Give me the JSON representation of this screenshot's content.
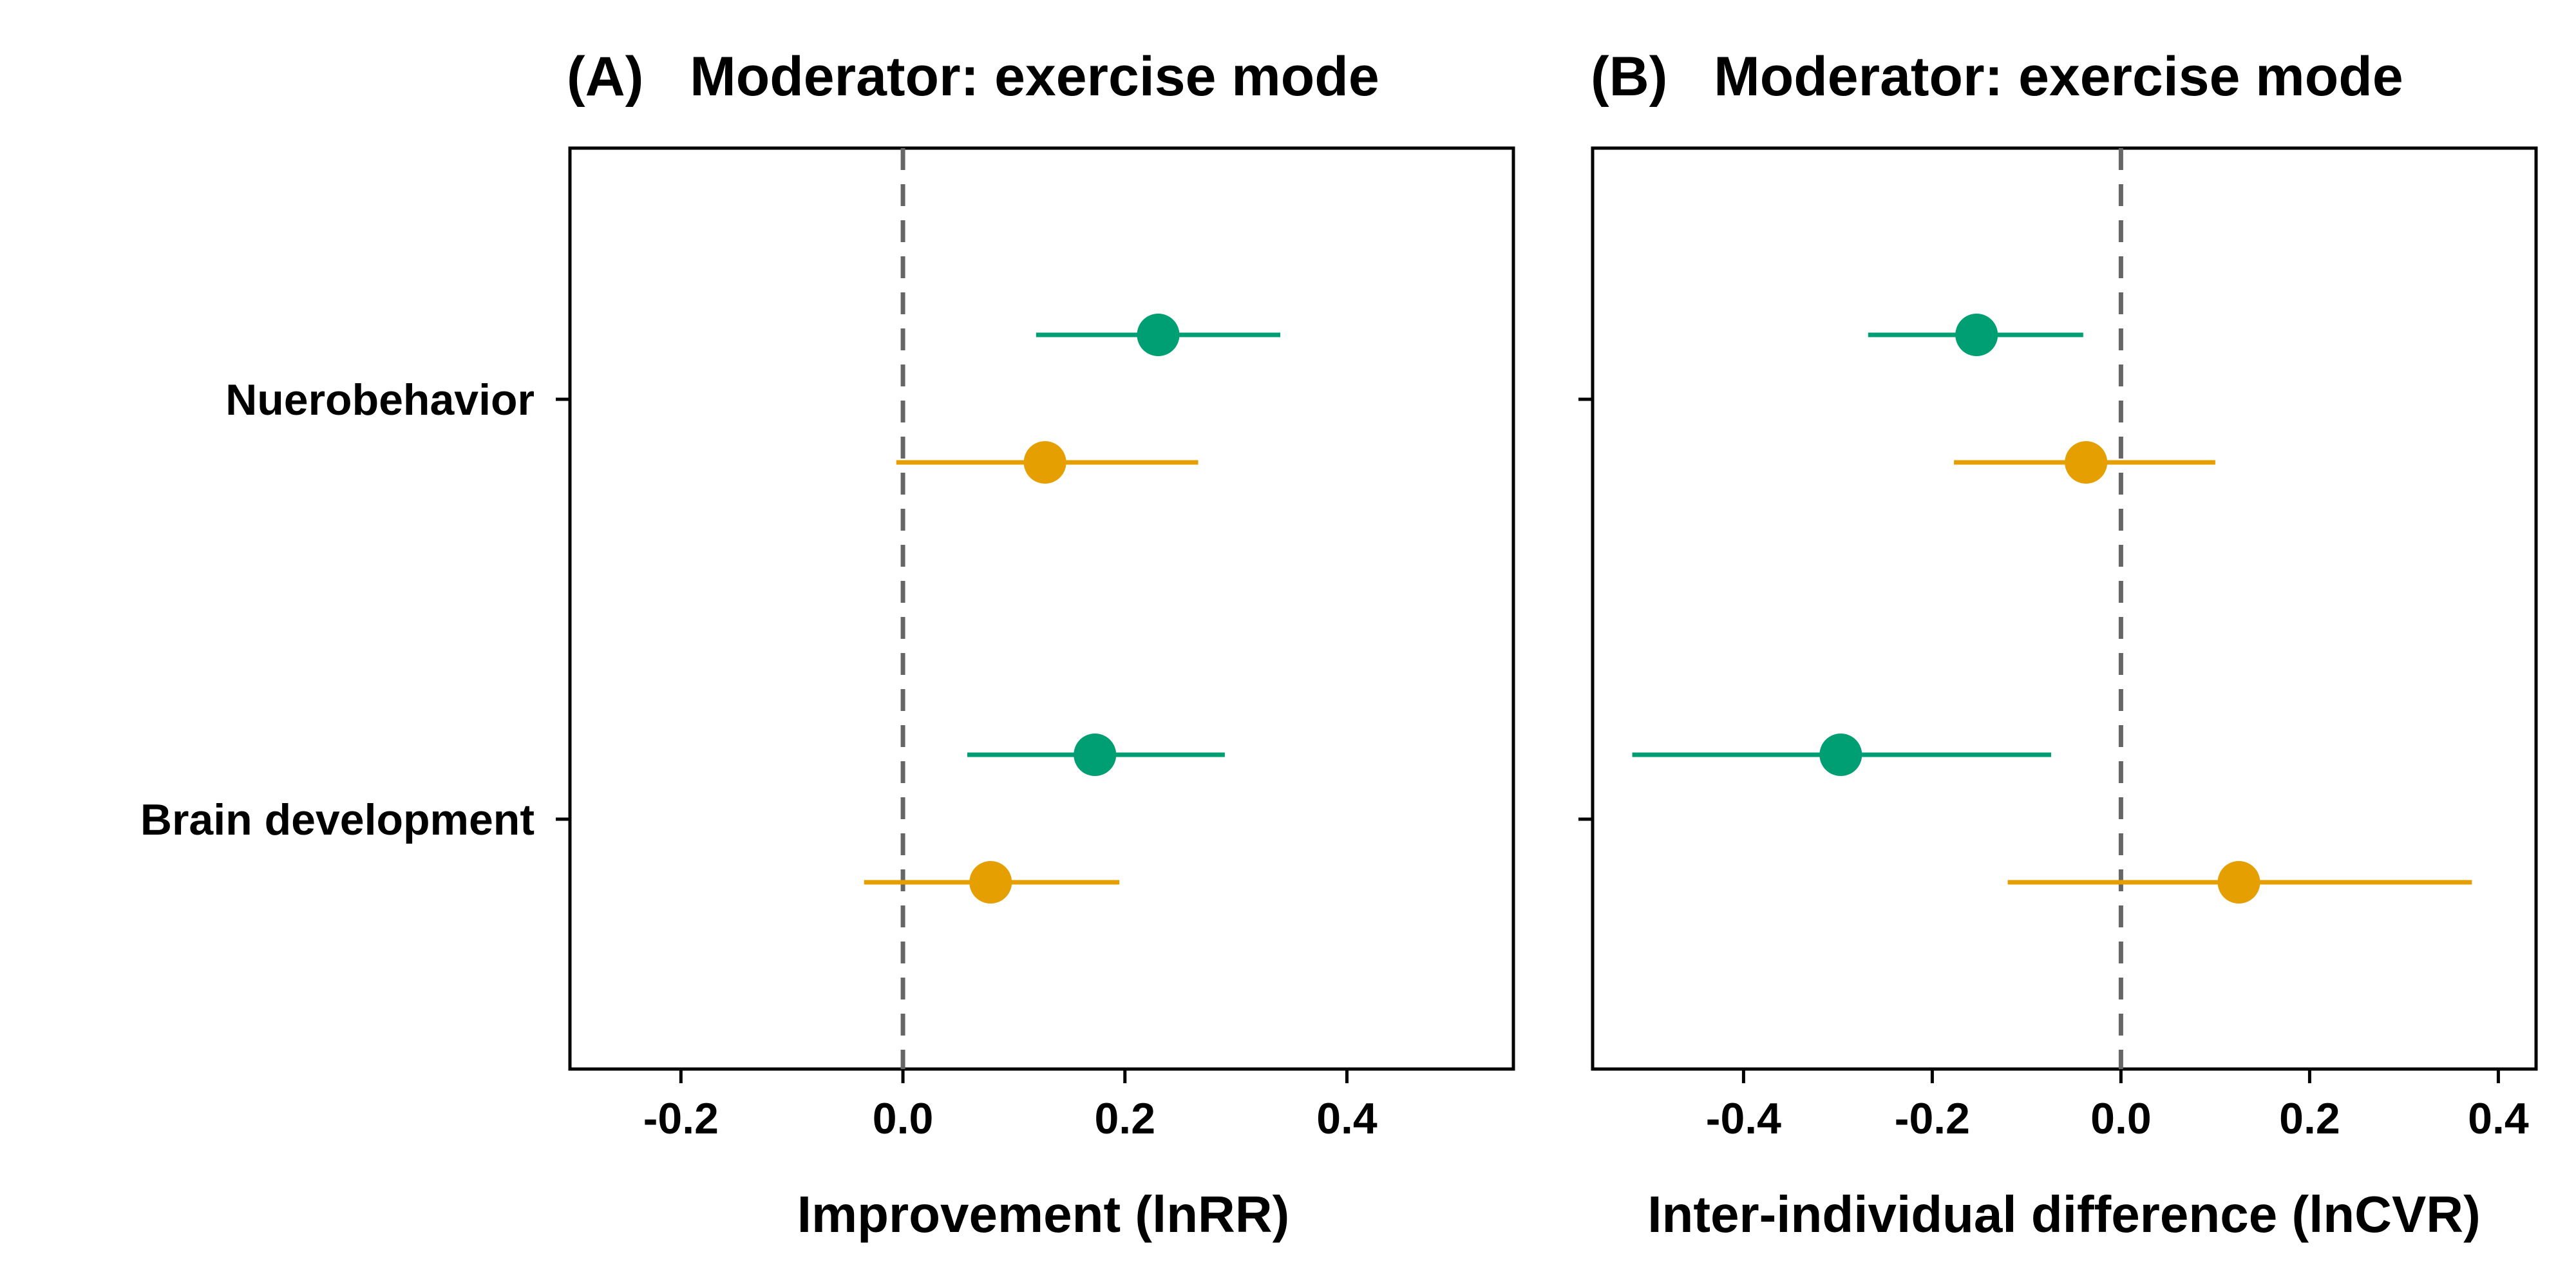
{
  "chart_data": [
    {
      "type": "scatter",
      "title": "(A)   Moderator: exercise mode",
      "xlabel": "Improvement (lnRR)",
      "ylabel": "",
      "xlim": [
        -0.3,
        0.55
      ],
      "xticks": [
        "-0.2",
        "0.0",
        "0.2",
        "0.4"
      ],
      "xtick_values": [
        -0.2,
        0.0,
        0.2,
        0.4
      ],
      "categories": [
        "Nuerobehavior",
        "Brain development"
      ],
      "reference_line": 0,
      "grid": false,
      "legend": "none",
      "series": [
        {
          "color": "#009E73",
          "points": [
            {
              "category": "Nuerobehavior",
              "estimate": 0.23,
              "lower": 0.12,
              "upper": 0.34
            },
            {
              "category": "Brain development",
              "estimate": 0.173,
              "lower": 0.058,
              "upper": 0.29
            }
          ]
        },
        {
          "color": "#E69F00",
          "points": [
            {
              "category": "Nuerobehavior",
              "estimate": 0.128,
              "lower": -0.006,
              "upper": 0.266
            },
            {
              "category": "Brain development",
              "estimate": 0.079,
              "lower": -0.035,
              "upper": 0.195
            }
          ]
        }
      ]
    },
    {
      "type": "scatter",
      "title": "(B)   Moderator: exercise mode",
      "xlabel": "Inter-individual difference (lnCVR)",
      "ylabel": "",
      "xlim": [
        -0.56,
        0.44
      ],
      "xticks": [
        "-0.4",
        "-0.2",
        "0.0",
        "0.2",
        "0.4"
      ],
      "xtick_values": [
        -0.4,
        -0.2,
        0.0,
        0.2,
        0.4
      ],
      "categories": [
        "Nuerobehavior",
        "Brain development"
      ],
      "reference_line": 0,
      "grid": false,
      "legend": "none",
      "series": [
        {
          "color": "#009E73",
          "points": [
            {
              "category": "Nuerobehavior",
              "estimate": -0.153,
              "lower": -0.268,
              "upper": -0.04
            },
            {
              "category": "Brain development",
              "estimate": -0.297,
              "lower": -0.518,
              "upper": -0.074
            }
          ]
        },
        {
          "color": "#E69F00",
          "points": [
            {
              "category": "Nuerobehavior",
              "estimate": -0.037,
              "lower": -0.177,
              "upper": 0.1
            },
            {
              "category": "Brain development",
              "estimate": 0.125,
              "lower": -0.12,
              "upper": 0.372
            }
          ]
        }
      ]
    }
  ]
}
